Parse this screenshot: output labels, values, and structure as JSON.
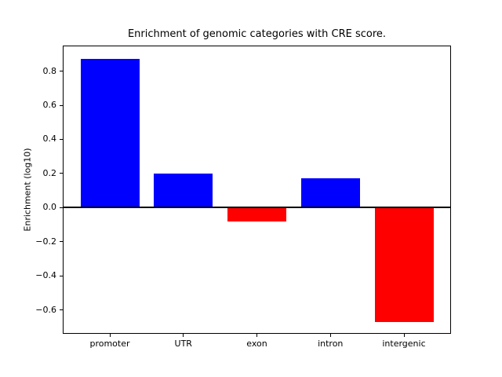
{
  "figure": {
    "background": "#ffffff",
    "axis_color": "#000000"
  },
  "chart_data": {
    "type": "bar",
    "title": "Enrichment of genomic categories with CRE score.",
    "xlabel": "",
    "ylabel": "Enrichment (log10)",
    "categories": [
      "promoter",
      "UTR",
      "exon",
      "intron",
      "intergenic"
    ],
    "values": [
      0.87,
      0.2,
      -0.08,
      0.17,
      -0.67
    ],
    "bar_colors": [
      "#0000ff",
      "#0000ff",
      "#ff0000",
      "#0000ff",
      "#ff0000"
    ],
    "positive_color": "#0000ff",
    "negative_color": "#ff0000",
    "bar_width": 0.8,
    "ylim": [
      -0.74,
      0.95
    ],
    "xlim": [
      -0.64,
      4.64
    ],
    "yticks": [
      {
        "value": 0.8,
        "label": "0.8"
      },
      {
        "value": 0.6,
        "label": "0.6"
      },
      {
        "value": 0.4,
        "label": "0.4"
      },
      {
        "value": 0.2,
        "label": "0.2"
      },
      {
        "value": 0.0,
        "label": "0.0"
      },
      {
        "value": -0.2,
        "label": "−0.2"
      },
      {
        "value": -0.4,
        "label": "−0.4"
      },
      {
        "value": -0.6,
        "label": "−0.6"
      }
    ],
    "zero_line": true,
    "grid": false,
    "legend": false
  }
}
